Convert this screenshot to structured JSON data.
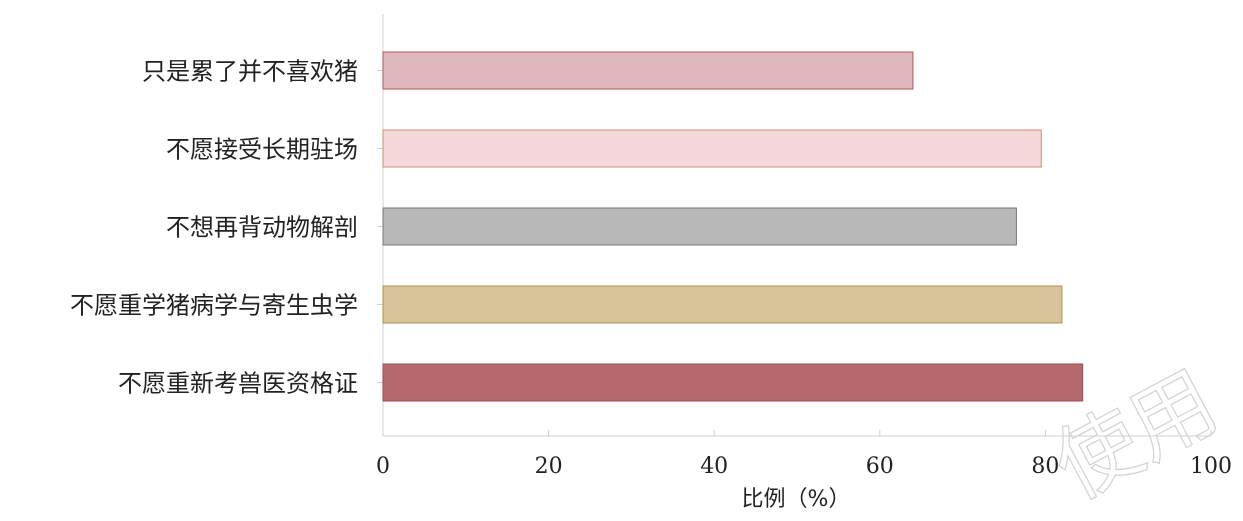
{
  "chart_data": {
    "type": "bar",
    "orientation": "horizontal",
    "categories": [
      "只是累了并不喜欢猪",
      "不愿接受长期驻场",
      "不想再背动物解剖",
      "不愿重学猪病学与寄生虫学",
      "不愿重新考兽医资格证"
    ],
    "values": [
      64,
      79.5,
      76.5,
      82,
      84.5
    ],
    "colors": [
      "#dfb8bd",
      "#f6d8da",
      "#b8b8b8",
      "#d9c49a",
      "#b46a6d"
    ],
    "border_colors": [
      "#b85454",
      "#c89070",
      "#777777",
      "#b09050",
      "#a04a4d"
    ],
    "xlabel": "比例（%）",
    "ylabel": "",
    "title": "",
    "xlim": [
      0,
      100
    ],
    "xticks": [
      0,
      20,
      40,
      60,
      80,
      100
    ],
    "grid": false
  },
  "watermark": "使用"
}
